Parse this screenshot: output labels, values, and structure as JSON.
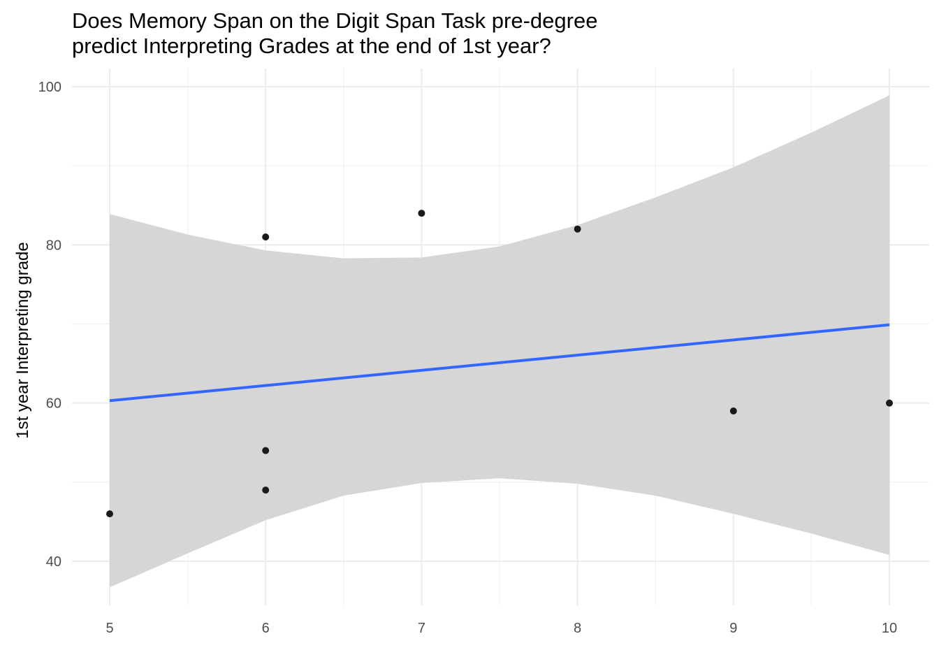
{
  "chart_data": {
    "type": "scatter",
    "title": "Does Memory Span on the Digit Span Task pre-degree\npredict Interpreting Grades at the end of 1st year?",
    "xlabel": "",
    "ylabel": "1st year Interpreting grade",
    "xlim": [
      5,
      10
    ],
    "ylim": [
      40,
      100
    ],
    "x_ticks": [
      5,
      6,
      7,
      8,
      9,
      10
    ],
    "y_ticks": [
      40,
      60,
      80,
      100
    ],
    "grid": true,
    "points": [
      {
        "x": 5,
        "y": 46
      },
      {
        "x": 6,
        "y": 81
      },
      {
        "x": 6,
        "y": 54
      },
      {
        "x": 6,
        "y": 49
      },
      {
        "x": 7,
        "y": 84
      },
      {
        "x": 8,
        "y": 82
      },
      {
        "x": 9,
        "y": 59
      },
      {
        "x": 10,
        "y": 60
      }
    ],
    "trend_line": {
      "x": [
        5,
        10
      ],
      "y": [
        60.3,
        69.9
      ],
      "color": "#3366ff"
    },
    "confidence_band": {
      "x": [
        5,
        5.5,
        6,
        6.5,
        7,
        7.5,
        8,
        8.5,
        9,
        9.5,
        10
      ],
      "upper": [
        83.9,
        81.3,
        79.3,
        78.3,
        78.4,
        79.8,
        82.5,
        86.0,
        89.8,
        94.2,
        98.9
      ],
      "lower": [
        36.7,
        41.0,
        45.2,
        48.3,
        49.9,
        50.5,
        49.8,
        48.3,
        46.0,
        43.5,
        40.8
      ],
      "color": "#d6d6d6"
    },
    "point_color": "#1a1a1a"
  }
}
